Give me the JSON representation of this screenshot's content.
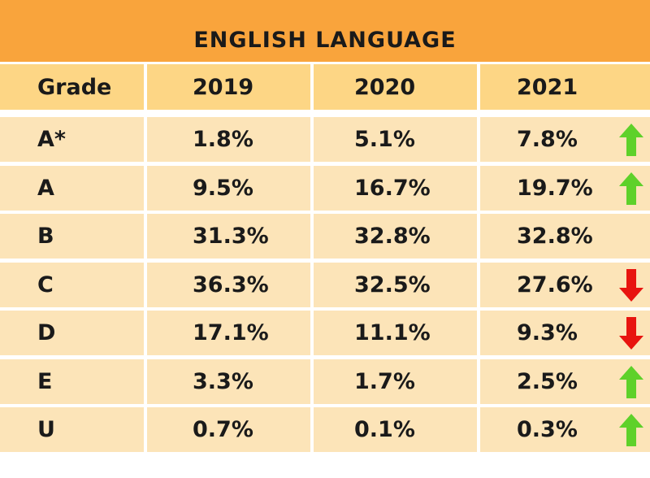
{
  "chart_data": {
    "type": "table",
    "title": "ENGLISH LANGUAGE",
    "columns": [
      "Grade",
      "2019",
      "2020",
      "2021"
    ],
    "rows": [
      {
        "grade": "A*",
        "v2019": "1.8%",
        "v2020": "5.1%",
        "v2021": "7.8%",
        "trend": "up"
      },
      {
        "grade": "A",
        "v2019": "9.5%",
        "v2020": "16.7%",
        "v2021": "19.7%",
        "trend": "up"
      },
      {
        "grade": "B",
        "v2019": "31.3%",
        "v2020": "32.8%",
        "v2021": "32.8%",
        "trend": "none"
      },
      {
        "grade": "C",
        "v2019": "36.3%",
        "v2020": "32.5%",
        "v2021": "27.6%",
        "trend": "down"
      },
      {
        "grade": "D",
        "v2019": "17.1%",
        "v2020": "11.1%",
        "v2021": "9.3%",
        "trend": "down"
      },
      {
        "grade": "E",
        "v2019": "3.3%",
        "v2020": "1.7%",
        "v2021": "2.5%",
        "trend": "up"
      },
      {
        "grade": "U",
        "v2019": "0.7%",
        "v2020": "0.1%",
        "v2021": "0.3%",
        "trend": "up"
      }
    ]
  },
  "colors": {
    "header_bar": "#f9a43c",
    "column_header": "#fdd685",
    "row": "#fce4b8",
    "up_arrow": "#5ed12a",
    "down_arrow": "#e8140f"
  },
  "icons": {
    "up": "arrow-up-icon",
    "down": "arrow-down-icon"
  }
}
